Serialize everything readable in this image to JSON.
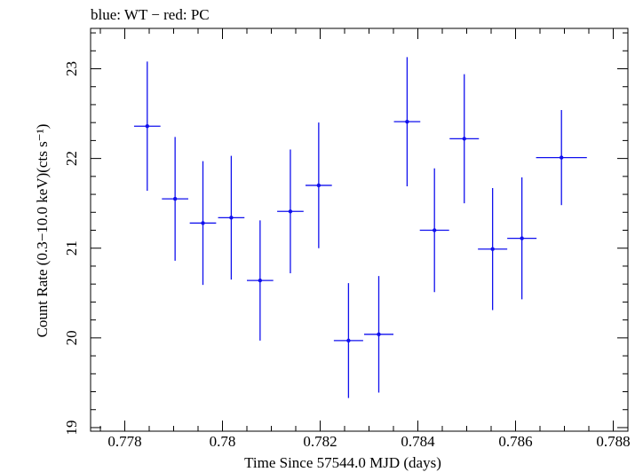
{
  "header": {
    "label": "blue: WT − red: PC"
  },
  "colors": {
    "series": "#1010ee",
    "axis": "#000000",
    "background": "#ffffff"
  },
  "chart_data": {
    "type": "scatter",
    "title": "blue: WT − red: PC",
    "xlabel": "Time Since 57544.0 MJD (days)",
    "ylabel": "Count Rate (0.3−10.0 keV)(cts s⁻¹)",
    "xlim": [
      0.7773,
      0.7883
    ],
    "ylim": [
      18.96,
      23.45
    ],
    "xticks": [
      0.778,
      0.78,
      0.782,
      0.784,
      0.786,
      0.788
    ],
    "xtick_labels": [
      "0.778",
      "0.78",
      "0.782",
      "0.784",
      "0.786",
      "0.788"
    ],
    "yticks": [
      19,
      20,
      21,
      22,
      23
    ],
    "ytick_labels": [
      "19",
      "20",
      "21",
      "22",
      "23"
    ],
    "grid": false,
    "series": [
      {
        "points": [
          {
            "x": 0.77846,
            "xerr": 0.00027,
            "y": 22.36,
            "yerr": 0.72
          },
          {
            "x": 0.77903,
            "xerr": 0.00027,
            "y": 21.55,
            "yerr": 0.69
          },
          {
            "x": 0.7796,
            "xerr": 0.00027,
            "y": 21.28,
            "yerr": 0.69
          },
          {
            "x": 0.78018,
            "xerr": 0.00027,
            "y": 21.34,
            "yerr": 0.69
          },
          {
            "x": 0.78077,
            "xerr": 0.00027,
            "y": 20.64,
            "yerr": 0.67
          },
          {
            "x": 0.78139,
            "xerr": 0.00027,
            "y": 21.41,
            "yerr": 0.69
          },
          {
            "x": 0.78197,
            "xerr": 0.00027,
            "y": 21.7,
            "yerr": 0.7
          },
          {
            "x": 0.78258,
            "xerr": 0.0003,
            "y": 19.97,
            "yerr": 0.64
          },
          {
            "x": 0.7832,
            "xerr": 0.0003,
            "y": 20.04,
            "yerr": 0.65
          },
          {
            "x": 0.78378,
            "xerr": 0.00027,
            "y": 22.41,
            "yerr": 0.72
          },
          {
            "x": 0.78434,
            "xerr": 0.0003,
            "y": 21.2,
            "yerr": 0.69
          },
          {
            "x": 0.78495,
            "xerr": 0.0003,
            "y": 22.22,
            "yerr": 0.72
          },
          {
            "x": 0.78553,
            "xerr": 0.0003,
            "y": 20.99,
            "yerr": 0.68
          },
          {
            "x": 0.78613,
            "xerr": 0.0003,
            "y": 21.11,
            "yerr": 0.68
          },
          {
            "x": 0.78694,
            "xerr": 0.00052,
            "y": 22.01,
            "yerr": 0.53
          }
        ]
      }
    ]
  }
}
